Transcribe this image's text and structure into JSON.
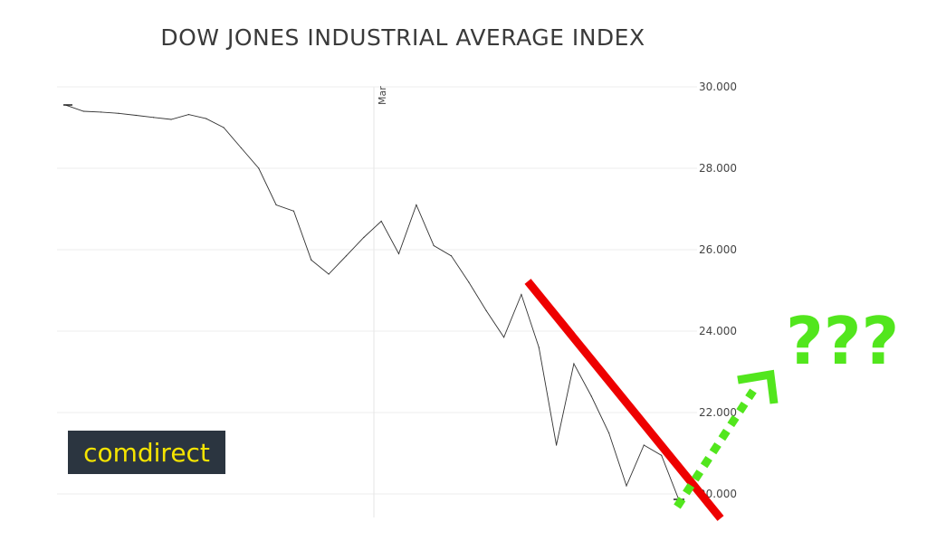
{
  "chart_data": {
    "type": "line",
    "title": "DOW JONES INDUSTRIAL AVERAGE INDEX",
    "xlabel": "",
    "ylabel": "",
    "month_marker": "Mar",
    "yticks": [
      20000,
      22000,
      24000,
      26000,
      28000,
      30000
    ],
    "ytick_labels": [
      "20.000",
      "22.000",
      "24.000",
      "26.000",
      "28.000",
      "30.000"
    ],
    "ylim": [
      19500,
      30000
    ],
    "grid": true,
    "y_axis_side": "right",
    "series": [
      {
        "color": "#333333",
        "x": [
          0,
          1,
          2,
          3,
          4,
          5,
          6,
          7,
          8,
          9,
          10,
          11,
          12,
          13,
          14,
          15,
          16,
          17,
          18,
          19,
          20,
          21,
          22,
          23,
          24,
          25,
          26,
          27,
          28,
          29,
          30,
          31,
          32,
          33,
          34,
          35
        ],
        "values": [
          29550,
          29400,
          29380,
          29350,
          29300,
          29250,
          29200,
          29320,
          29220,
          29000,
          28500,
          28000,
          27100,
          26950,
          25750,
          25400,
          25850,
          26300,
          26700,
          25900,
          27100,
          26100,
          25850,
          25200,
          24500,
          23850,
          24900,
          23600,
          21200,
          23200,
          22400,
          21500,
          20200,
          21200,
          20950,
          19850
        ]
      }
    ],
    "annotations": {
      "trend_line_color": "#ee0000",
      "arrow_color": "#52e61d",
      "question_text": "???"
    }
  },
  "logo": {
    "text": "comdirect",
    "background": "#2b3540",
    "text_color": "#f5e400"
  }
}
